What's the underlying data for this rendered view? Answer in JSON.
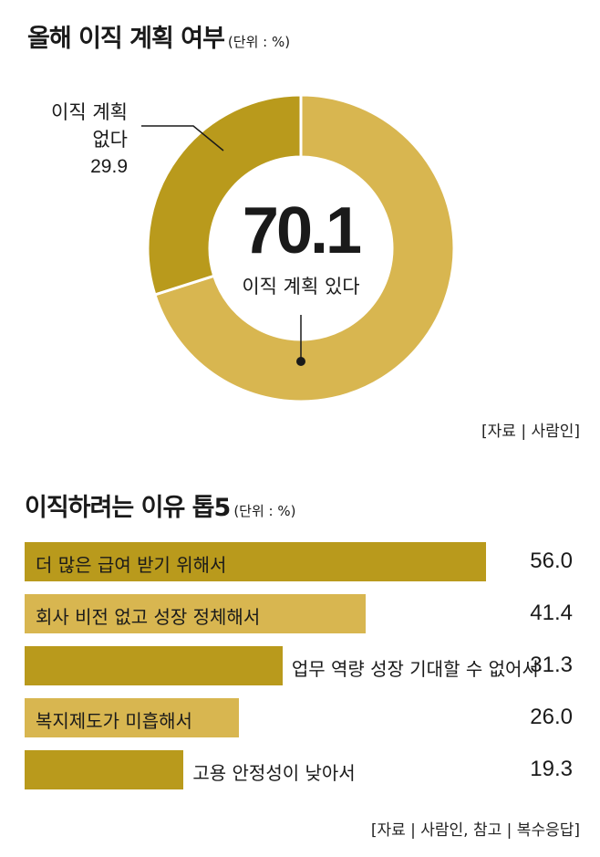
{
  "donut_chart": {
    "title": "올해 이직 계획 여부",
    "unit": "(단위 : %)",
    "center_value": "70.1",
    "center_label": "이직 계획 있다",
    "outer_label_line1": "이직 계획",
    "outer_label_line2": "없다",
    "outer_label_value": "29.9",
    "source": "[자료 | 사람인]"
  },
  "bar_chart": {
    "title": "이직하려는 이유 톱5",
    "unit": "(단위 : %)",
    "source": "[자료 | 사람인, 참고 | 복수응답]"
  },
  "colors": {
    "dark_gold": "#b99a1c",
    "light_gold": "#d8b650"
  },
  "chart_data": [
    {
      "type": "pie",
      "title": "올해 이직 계획 여부",
      "categories": [
        "이직 계획 있다",
        "이직 계획 없다"
      ],
      "values": [
        70.1,
        29.9
      ],
      "colors": [
        "#d8b650",
        "#b99a1c"
      ],
      "donut": true
    },
    {
      "type": "bar",
      "orientation": "horizontal",
      "title": "이직하려는 이유 톱5",
      "categories": [
        "더 많은 급여 받기 위해서",
        "회사 비전 없고 성장 정체해서",
        "업무 역량 성장 기대할 수 없어서",
        "복지제도가 미흡해서",
        "고용 안정성이 낮아서"
      ],
      "values": [
        56.0,
        41.4,
        31.3,
        26.0,
        19.3
      ],
      "value_labels": [
        "56.0",
        "41.4",
        "31.3",
        "26.0",
        "19.3"
      ],
      "colors": [
        "#b99a1c",
        "#d8b650",
        "#b99a1c",
        "#d8b650",
        "#b99a1c"
      ],
      "xlim": [
        0,
        56.0
      ]
    }
  ]
}
